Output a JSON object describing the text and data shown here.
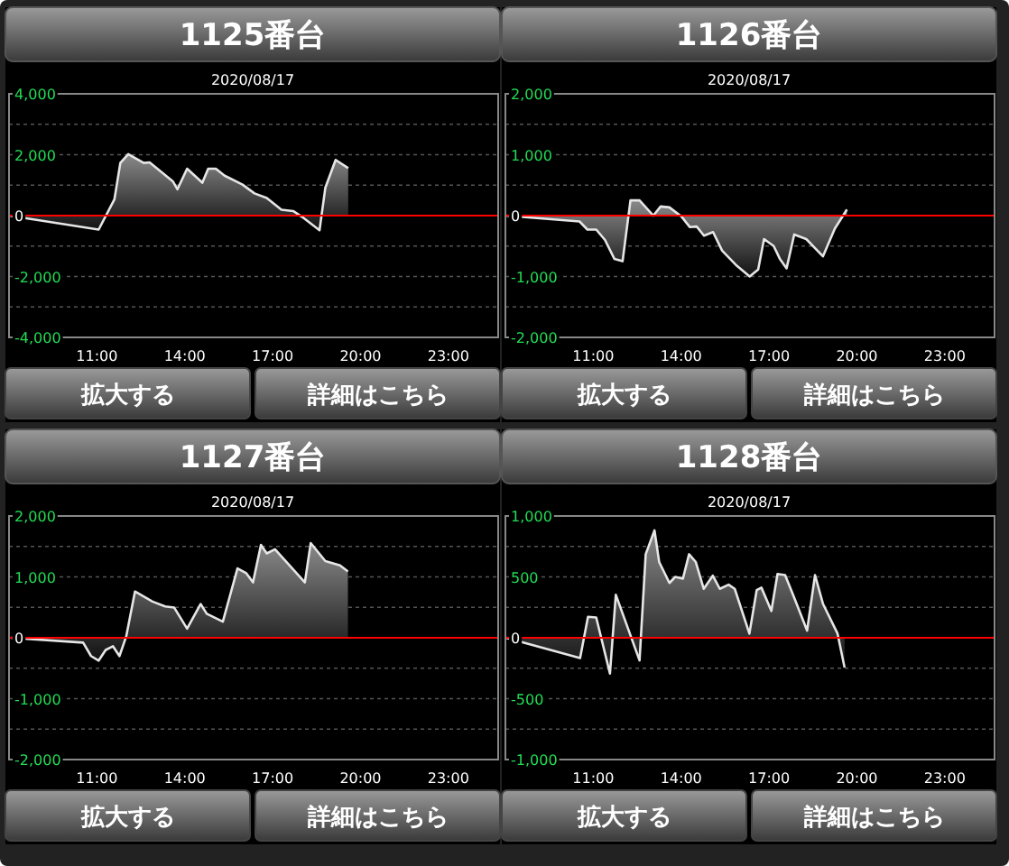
{
  "chart_data": [
    {
      "type": "area",
      "title": "1125番台",
      "subtitle": "2020/08/17",
      "annotations": [
        "拡大する",
        "詳細はこちら"
      ],
      "xlim": [
        8,
        24.7
      ],
      "xticks": [
        {
          "value": 11,
          "label": "11:00"
        },
        {
          "value": 14,
          "label": "14:00"
        },
        {
          "value": 17,
          "label": "17:00"
        },
        {
          "value": 20,
          "label": "20:00"
        },
        {
          "value": 23,
          "label": "23:00"
        }
      ],
      "ylim": [
        -4000,
        4000
      ],
      "yticks": [
        {
          "value": 4000,
          "label": "4,000"
        },
        {
          "value": 3000,
          "label": null
        },
        {
          "value": 2000,
          "label": "2,000"
        },
        {
          "value": 1000,
          "label": null
        },
        {
          "value": 0,
          "label": "0"
        },
        {
          "value": -1000,
          "label": null
        },
        {
          "value": -2000,
          "label": "-2,000"
        },
        {
          "value": -3000,
          "label": null
        },
        {
          "value": -4000,
          "label": "-4,000"
        }
      ],
      "grid": "y",
      "ref_lines": [
        {
          "axis": "y",
          "value": 0,
          "color": "#ff0000"
        }
      ],
      "series": [
        {
          "color": "#e6e6e6",
          "x": [
            8.0,
            11.06,
            11.6,
            11.8,
            12.07,
            12.6,
            12.8,
            13.6,
            13.75,
            14.08,
            14.6,
            14.8,
            15.06,
            15.36,
            15.97,
            16.38,
            16.8,
            17.3,
            17.7,
            18.0,
            18.6,
            18.8,
            19.15,
            19.58
          ],
          "values": [
            0,
            -460,
            540,
            1730,
            2020,
            1730,
            1750,
            1115,
            865,
            1540,
            1080,
            1540,
            1540,
            1310,
            1020,
            730,
            580,
            190,
            150,
            -40,
            -480,
            920,
            1830,
            1560
          ]
        }
      ]
    },
    {
      "type": "area",
      "title": "1126番台",
      "subtitle": "2020/08/17",
      "annotations": [
        "拡大する",
        "詳細はこちら"
      ],
      "xlim": [
        8,
        24.7
      ],
      "xticks": [
        {
          "value": 11,
          "label": "11:00"
        },
        {
          "value": 14,
          "label": "14:00"
        },
        {
          "value": 17,
          "label": "17:00"
        },
        {
          "value": 20,
          "label": "20:00"
        },
        {
          "value": 23,
          "label": "23:00"
        }
      ],
      "ylim": [
        -2000,
        2000
      ],
      "yticks": [
        {
          "value": 2000,
          "label": "2,000"
        },
        {
          "value": 1500,
          "label": null
        },
        {
          "value": 1000,
          "label": "1,000"
        },
        {
          "value": 500,
          "label": null
        },
        {
          "value": 0,
          "label": "0"
        },
        {
          "value": -500,
          "label": null
        },
        {
          "value": -1000,
          "label": "-1,000"
        },
        {
          "value": -1500,
          "label": null
        },
        {
          "value": -2000,
          "label": "-2,000"
        }
      ],
      "grid": "y",
      "ref_lines": [
        {
          "axis": "y",
          "value": 0,
          "color": "#ff0000"
        }
      ],
      "series": [
        {
          "color": "#e6e6e6",
          "x": [
            8.0,
            10.53,
            10.8,
            11.1,
            11.4,
            11.72,
            12.0,
            12.27,
            12.58,
            13.05,
            13.3,
            13.6,
            14.02,
            14.3,
            14.53,
            14.78,
            15.09,
            15.4,
            15.87,
            16.34,
            16.63,
            16.83,
            17.16,
            17.37,
            17.6,
            17.86,
            18.27,
            18.84,
            19.25,
            19.66
          ],
          "values": [
            0,
            -96,
            -230,
            -230,
            -400,
            -710,
            -750,
            250,
            250,
            0,
            150,
            135,
            -20,
            -190,
            -180,
            -330,
            -270,
            -575,
            -810,
            -1000,
            -885,
            -385,
            -500,
            -710,
            -865,
            -310,
            -385,
            -670,
            -210,
            100
          ]
        }
      ]
    },
    {
      "type": "area",
      "title": "1127番台",
      "subtitle": "2020/08/17",
      "annotations": [
        "拡大する",
        "詳細はこちら"
      ],
      "xlim": [
        8,
        24.7
      ],
      "xticks": [
        {
          "value": 11,
          "label": "11:00"
        },
        {
          "value": 14,
          "label": "14:00"
        },
        {
          "value": 17,
          "label": "17:00"
        },
        {
          "value": 20,
          "label": "20:00"
        },
        {
          "value": 23,
          "label": "23:00"
        }
      ],
      "ylim": [
        -2000,
        2000
      ],
      "yticks": [
        {
          "value": 2000,
          "label": "2,000"
        },
        {
          "value": 1500,
          "label": null
        },
        {
          "value": 1000,
          "label": "1,000"
        },
        {
          "value": 500,
          "label": null
        },
        {
          "value": 0,
          "label": "0"
        },
        {
          "value": -500,
          "label": null
        },
        {
          "value": -1000,
          "label": "-1,000"
        },
        {
          "value": -1500,
          "label": null
        },
        {
          "value": -2000,
          "label": "-2,000"
        }
      ],
      "grid": "y",
      "ref_lines": [
        {
          "axis": "y",
          "value": 0,
          "color": "#ff0000"
        }
      ],
      "series": [
        {
          "color": "#e6e6e6",
          "x": [
            8.06,
            10.53,
            10.8,
            11.06,
            11.3,
            11.55,
            11.77,
            12.0,
            12.3,
            12.9,
            13.33,
            13.64,
            14.08,
            14.54,
            14.75,
            15.3,
            15.8,
            16.1,
            16.33,
            16.6,
            16.8,
            17.08,
            18.1,
            18.3,
            18.8,
            19.3,
            19.57
          ],
          "values": [
            0,
            -80,
            -300,
            -375,
            -200,
            -140,
            -300,
            20,
            760,
            595,
            515,
            495,
            150,
            555,
            395,
            265,
            1140,
            1060,
            910,
            1525,
            1385,
            1455,
            910,
            1555,
            1260,
            1190,
            1090
          ]
        }
      ]
    },
    {
      "type": "area",
      "title": "1128番台",
      "subtitle": "2020/08/17",
      "annotations": [
        "拡大する",
        "詳細はこちら"
      ],
      "xlim": [
        8,
        24.7
      ],
      "xticks": [
        {
          "value": 11,
          "label": "11:00"
        },
        {
          "value": 14,
          "label": "14:00"
        },
        {
          "value": 17,
          "label": "17:00"
        },
        {
          "value": 20,
          "label": "20:00"
        },
        {
          "value": 23,
          "label": "23:00"
        }
      ],
      "ylim": [
        -1000,
        1000
      ],
      "yticks": [
        {
          "value": 1000,
          "label": "1,000"
        },
        {
          "value": 750,
          "label": null
        },
        {
          "value": 500,
          "label": "500"
        },
        {
          "value": 250,
          "label": null
        },
        {
          "value": 0,
          "label": "0"
        },
        {
          "value": -250,
          "label": null
        },
        {
          "value": -500,
          "label": "-500"
        },
        {
          "value": -750,
          "label": null
        },
        {
          "value": -1000,
          "label": "-1,000"
        }
      ],
      "grid": "y",
      "ref_lines": [
        {
          "axis": "y",
          "value": 0,
          "color": "#ff0000"
        }
      ],
      "series": [
        {
          "color": "#e6e6e6",
          "x": [
            8.02,
            10.55,
            10.82,
            11.1,
            11.57,
            11.77,
            12.58,
            12.79,
            13.09,
            13.25,
            13.6,
            13.8,
            14.06,
            14.27,
            14.5,
            14.77,
            15.08,
            15.32,
            15.62,
            15.83,
            16.33,
            16.58,
            16.74,
            17.08,
            17.29,
            17.55,
            17.82,
            18.3,
            18.57,
            18.84,
            19.34,
            19.58
          ],
          "values": [
            0,
            -167,
            172,
            167,
            -294,
            353,
            -186,
            686,
            882,
            622,
            450,
            500,
            485,
            686,
            622,
            402,
            510,
            402,
            436,
            402,
            34,
            392,
            412,
            220,
            524,
            515,
            353,
            59,
            515,
            280,
            34,
            -245
          ]
        }
      ]
    }
  ]
}
